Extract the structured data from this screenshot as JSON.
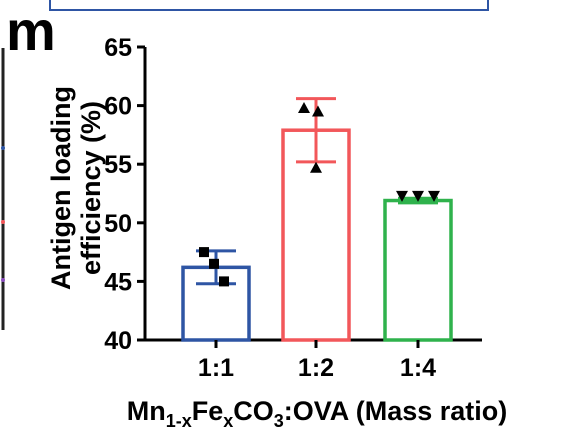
{
  "panel": {
    "label": "m"
  },
  "chart_data": {
    "type": "bar",
    "categories": [
      "1:1",
      "1:2",
      "1:4"
    ],
    "values": [
      46.2,
      57.9,
      51.9
    ],
    "errors": [
      1.4,
      2.7,
      0.2
    ],
    "points": [
      [
        47.5,
        45.0,
        46.5
      ],
      [
        59.8,
        59.5,
        54.7
      ],
      [
        52.3,
        52.3,
        52.3
      ]
    ],
    "markers": [
      "square",
      "triangle-up",
      "triangle-down"
    ],
    "colors": [
      "#2e55a4",
      "#f2575a",
      "#2fb24c"
    ],
    "ylabel_line1": "Antigen loading",
    "ylabel_line2": "efficiency (%)",
    "xlabel": {
      "prefix": "Mn",
      "sub1": "1-x",
      "mid": "Fe",
      "sub2": "x",
      "co": "CO",
      "sub3": "3",
      "suffix": ":OVA (Mass ratio)"
    },
    "ylim": [
      40,
      65
    ],
    "yticks": [
      40,
      45,
      50,
      55,
      60,
      65
    ],
    "grid": false
  }
}
